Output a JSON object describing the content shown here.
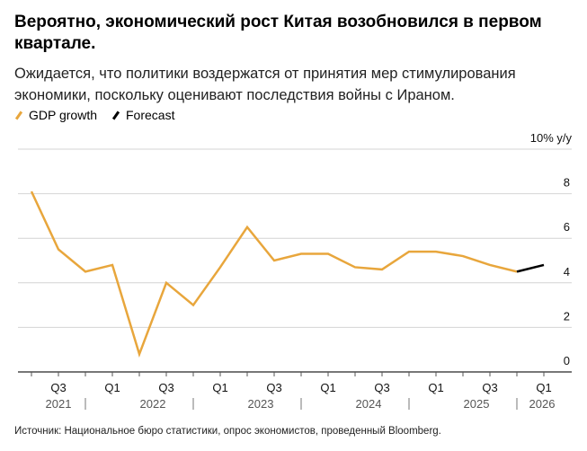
{
  "title": "Вероятно, экономический рост Китая возобновился в первом квартале.",
  "subtitle": "Ожидается, что политики воздержатся от принятия мер стимулирования экономики, поскольку оценивают последствия войны с Ираном.",
  "source": "Источник: Национальное бюро статистики, опрос экономистов, проведенный Bloomberg.",
  "chart_data": {
    "type": "line",
    "ylabel": "10% y/y",
    "ylim": [
      0,
      10
    ],
    "yticks": [
      "0",
      "2",
      "4",
      "6",
      "8"
    ],
    "grid": true,
    "legend_position": "top-left",
    "x": [
      "2021 Q2",
      "2021 Q3",
      "2021 Q4",
      "2022 Q1",
      "2022 Q2",
      "2022 Q3",
      "2022 Q4",
      "2023 Q1",
      "2023 Q2",
      "2023 Q3",
      "2023 Q4",
      "2024 Q1",
      "2024 Q2",
      "2024 Q3",
      "2024 Q4",
      "2025 Q1",
      "2025 Q2",
      "2025 Q3",
      "2025 Q4",
      "2026 Q1"
    ],
    "xtick_labels": [
      {
        "x": "2021 Q3",
        "label": "Q3"
      },
      {
        "x": "2022 Q1",
        "label": "Q1"
      },
      {
        "x": "2022 Q3",
        "label": "Q3"
      },
      {
        "x": "2023 Q1",
        "label": "Q1"
      },
      {
        "x": "2023 Q3",
        "label": "Q3"
      },
      {
        "x": "2024 Q1",
        "label": "Q1"
      },
      {
        "x": "2024 Q3",
        "label": "Q3"
      },
      {
        "x": "2025 Q1",
        "label": "Q1"
      },
      {
        "x": "2025 Q3",
        "label": "Q3"
      },
      {
        "x": "2026 Q1",
        "label": "Q1"
      }
    ],
    "years": [
      "2021",
      "2022",
      "2023",
      "2024",
      "2025",
      "2026"
    ],
    "series": [
      {
        "name": "GDP growth",
        "color": "#e8a63c",
        "values": [
          8.1,
          5.5,
          4.5,
          4.8,
          0.8,
          4.0,
          3.0,
          4.7,
          6.5,
          5.0,
          5.3,
          5.3,
          4.7,
          4.6,
          5.4,
          5.4,
          5.2,
          4.8,
          4.5,
          null
        ]
      },
      {
        "name": "Forecast",
        "color": "#000000",
        "values": [
          null,
          null,
          null,
          null,
          null,
          null,
          null,
          null,
          null,
          null,
          null,
          null,
          null,
          null,
          null,
          null,
          null,
          null,
          4.5,
          4.8
        ]
      }
    ]
  }
}
